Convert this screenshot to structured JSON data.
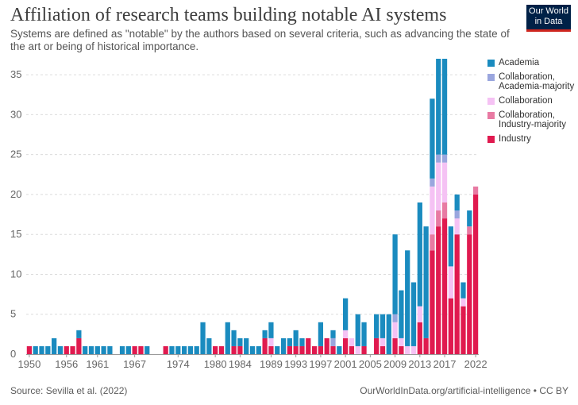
{
  "header": {
    "title": "Affiliation of research teams building notable AI systems",
    "subtitle": "Systems are defined as \"notable\" by the authors based on several criteria, such as advancing the state of the art or being of historical importance.",
    "logo_line1": "Our World",
    "logo_line2": "in Data"
  },
  "footer": {
    "source": "Source: Sevilla et al. (2022)",
    "credit": "OurWorldInData.org/artificial-intelligence • CC BY"
  },
  "colors": {
    "Academia": "#1a8bbf",
    "Collaboration, Academia-majority": "#9aa6de",
    "Collaboration": "#f5c2f4",
    "Collaboration, Industry-majority": "#e87aa3",
    "Industry": "#e01a4f"
  },
  "chart_data": {
    "type": "bar",
    "stacked": true,
    "title": "Affiliation of research teams building notable AI systems",
    "xlabel": "",
    "ylabel": "",
    "ylim": [
      0,
      37
    ],
    "yticks": [
      0,
      5,
      10,
      15,
      20,
      25,
      30,
      35
    ],
    "xtick_labels": [
      "1950",
      "1956",
      "1961",
      "1967",
      "1974",
      "1980",
      "1984",
      "1989",
      "1993",
      "1997",
      "2001",
      "2005",
      "2009",
      "2013",
      "2017",
      "2022"
    ],
    "grid": true,
    "legend": "right",
    "categories": [
      "1950",
      "1951",
      "1952",
      "1953",
      "1954",
      "1955",
      "1956",
      "1957",
      "1958",
      "1959",
      "1960",
      "1961",
      "1962",
      "1963",
      "1965",
      "1966",
      "1967",
      "1968",
      "1969",
      "1972",
      "1973",
      "1974",
      "1975",
      "1976",
      "1977",
      "1978",
      "1979",
      "1980",
      "1981",
      "1982",
      "1983",
      "1984",
      "1985",
      "1986",
      "1987",
      "1988",
      "1989",
      "1990",
      "1991",
      "1992",
      "1993",
      "1994",
      "1995",
      "1996",
      "1997",
      "1998",
      "1999",
      "2000",
      "2001",
      "2002",
      "2003",
      "2004",
      "2005",
      "2006",
      "2007",
      "2008",
      "2009",
      "2010",
      "2011",
      "2012",
      "2013",
      "2014",
      "2015",
      "2016",
      "2017",
      "2018",
      "2019",
      "2020",
      "2021",
      "2022"
    ],
    "series": [
      {
        "name": "Academia",
        "values": [
          0,
          1,
          1,
          1,
          2,
          1,
          0,
          0,
          1,
          1,
          1,
          1,
          1,
          1,
          1,
          1,
          0,
          0,
          1,
          0,
          1,
          1,
          1,
          1,
          1,
          4,
          2,
          0,
          0,
          4,
          2,
          1,
          2,
          1,
          1,
          1,
          2,
          1,
          2,
          1,
          2,
          1,
          0,
          0,
          3,
          0,
          1,
          1,
          4,
          0,
          4,
          3,
          0,
          3,
          3,
          5,
          10,
          6,
          12,
          8,
          13,
          14,
          10,
          12,
          12,
          5,
          2,
          2,
          2,
          0
        ]
      },
      {
        "name": "Collaboration, Academia-majority",
        "values": [
          0,
          0,
          0,
          0,
          0,
          0,
          0,
          0,
          0,
          0,
          0,
          0,
          0,
          0,
          0,
          0,
          0,
          0,
          0,
          0,
          0,
          0,
          0,
          0,
          0,
          0,
          0,
          0,
          0,
          0,
          0,
          0,
          0,
          0,
          0,
          0,
          0,
          0,
          0,
          0,
          0,
          0,
          0,
          0,
          0,
          0,
          1,
          0,
          0,
          0,
          0,
          0,
          0,
          0,
          0,
          0,
          1,
          0,
          0,
          0,
          0,
          0,
          1,
          1,
          1,
          0,
          1,
          0,
          0,
          0
        ]
      },
      {
        "name": "Collaboration",
        "values": [
          0,
          0,
          0,
          0,
          0,
          0,
          0,
          0,
          0,
          0,
          0,
          0,
          0,
          0,
          0,
          0,
          0,
          0,
          0,
          0,
          0,
          0,
          0,
          0,
          0,
          0,
          0,
          0,
          0,
          0,
          0,
          0,
          0,
          0,
          0,
          0,
          1,
          0,
          0,
          0,
          0,
          0,
          0,
          0,
          0,
          0,
          0,
          0,
          1,
          1,
          1,
          0,
          0,
          0,
          1,
          0,
          2,
          1,
          1,
          1,
          2,
          0,
          6,
          6,
          5,
          4,
          2,
          1,
          0,
          0
        ]
      },
      {
        "name": "Collaboration, Industry-majority",
        "values": [
          0,
          0,
          0,
          0,
          0,
          0,
          0,
          0,
          0,
          0,
          0,
          0,
          0,
          0,
          0,
          0,
          0,
          0,
          0,
          0,
          0,
          0,
          0,
          0,
          0,
          0,
          0,
          0,
          0,
          0,
          0,
          0,
          0,
          0,
          0,
          0,
          0,
          0,
          0,
          0,
          0,
          0,
          0,
          0,
          0,
          0,
          0,
          0,
          0,
          0,
          0,
          0,
          0,
          0,
          0,
          0,
          0,
          0,
          0,
          0,
          0,
          0,
          2,
          2,
          2,
          0,
          0,
          0,
          1,
          1
        ]
      },
      {
        "name": "Industry",
        "values": [
          1,
          0,
          0,
          0,
          0,
          0,
          1,
          1,
          2,
          0,
          0,
          0,
          0,
          0,
          0,
          0,
          1,
          1,
          0,
          1,
          0,
          0,
          0,
          0,
          0,
          0,
          0,
          1,
          1,
          0,
          1,
          1,
          0,
          0,
          0,
          2,
          1,
          0,
          0,
          1,
          1,
          1,
          2,
          1,
          1,
          2,
          1,
          0,
          2,
          1,
          0,
          1,
          0,
          2,
          1,
          0,
          2,
          1,
          0,
          0,
          4,
          2,
          13,
          16,
          17,
          7,
          15,
          6,
          15,
          20
        ]
      }
    ]
  }
}
